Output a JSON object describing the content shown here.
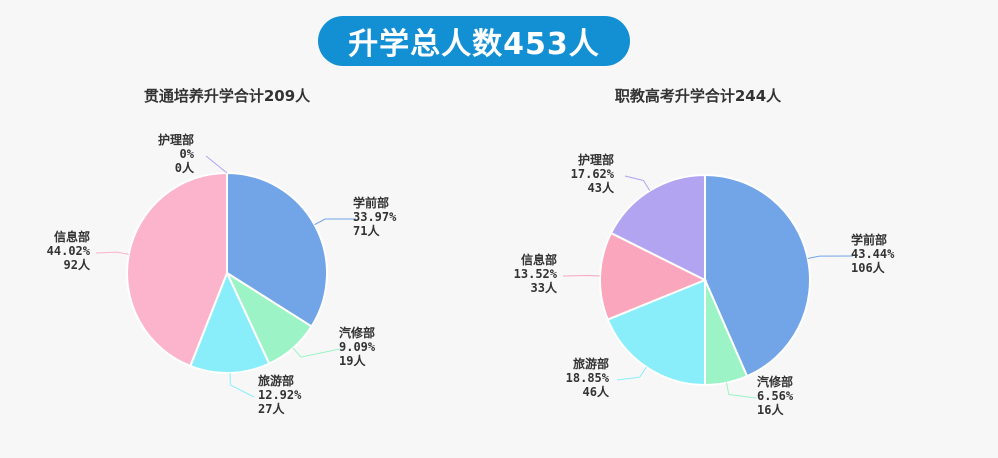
{
  "header": {
    "title": "升学总人数453人"
  },
  "colors": {
    "title_bg": "#138fd3",
    "background": "#f7f7f7"
  },
  "chart_data": [
    {
      "type": "pie",
      "title": "贯通培养升学合计209人",
      "slices": [
        {
          "name": "学前部",
          "percent": "33.97%",
          "count": "71人",
          "value": 71,
          "color": "#72a4e8"
        },
        {
          "name": "汽修部",
          "percent": "9.09%",
          "count": "19人",
          "value": 19,
          "color": "#9cf3c6"
        },
        {
          "name": "旅游部",
          "percent": "12.92%",
          "count": "27人",
          "value": 27,
          "color": "#8aeefa"
        },
        {
          "name": "信息部",
          "percent": "44.02%",
          "count": "92人",
          "value": 92,
          "color": "#fbb4cb"
        },
        {
          "name": "护理部",
          "percent": "0%",
          "count": "0人",
          "value": 0,
          "color": "#b3a4f1"
        }
      ]
    },
    {
      "type": "pie",
      "title": "职教高考升学合计244人",
      "slices": [
        {
          "name": "学前部",
          "percent": "43.44%",
          "count": "106人",
          "value": 106,
          "color": "#72a4e8"
        },
        {
          "name": "汽修部",
          "percent": "6.56%",
          "count": "16人",
          "value": 16,
          "color": "#9cf3c6"
        },
        {
          "name": "旅游部",
          "percent": "18.85%",
          "count": "46人",
          "value": 46,
          "color": "#8aeefa"
        },
        {
          "name": "信息部",
          "percent": "13.52%",
          "count": "33人",
          "value": 33,
          "color": "#faa6bd"
        },
        {
          "name": "护理部",
          "percent": "17.62%",
          "count": "43人",
          "value": 43,
          "color": "#b3a4f1"
        }
      ]
    }
  ]
}
